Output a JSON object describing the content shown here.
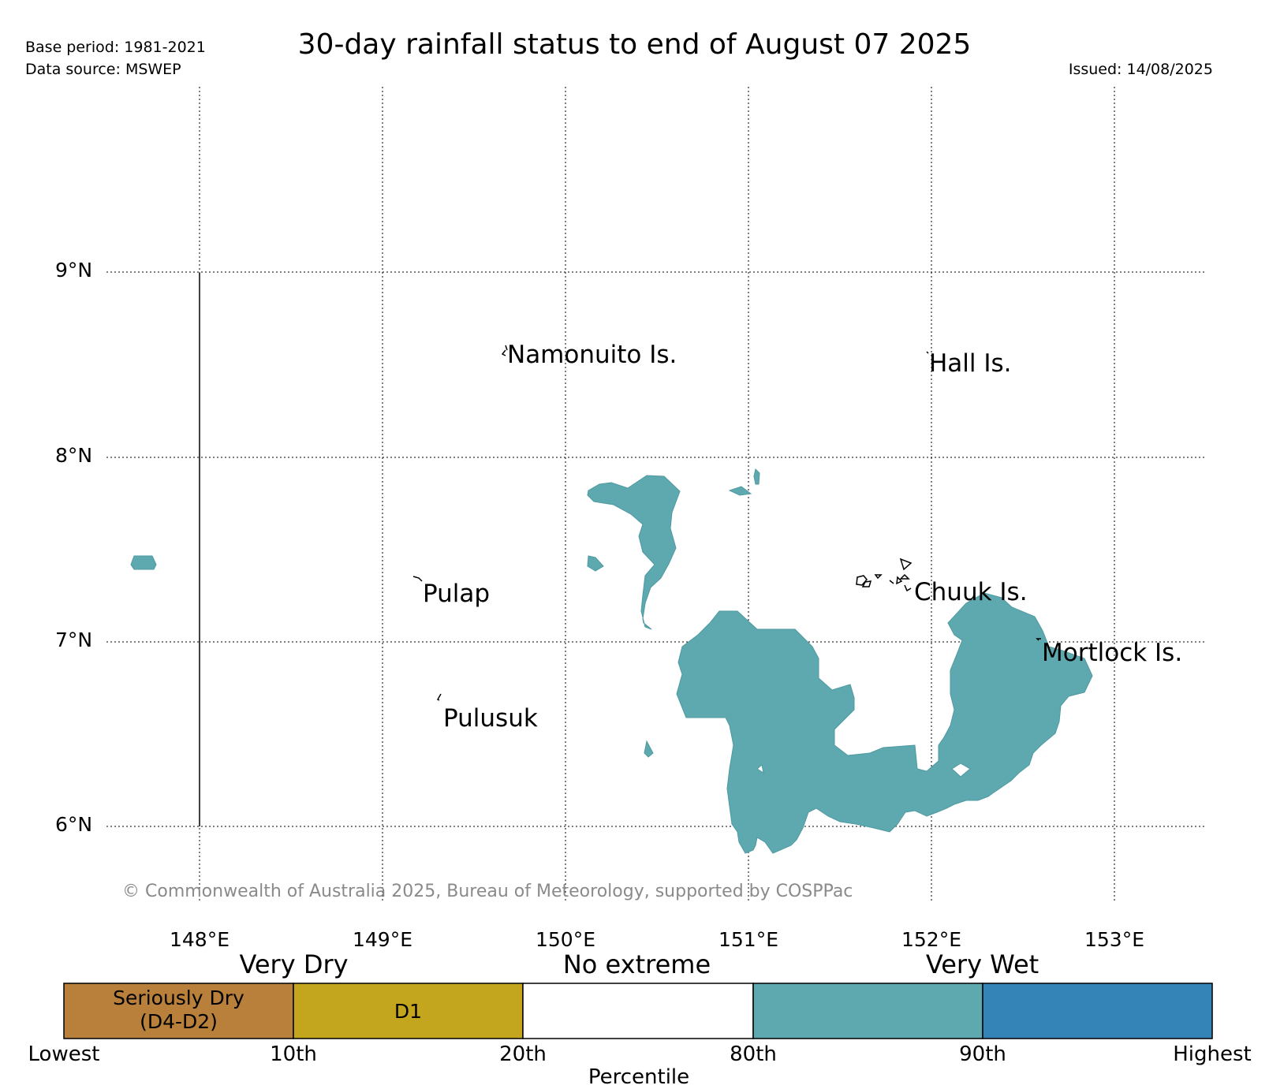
{
  "header": {
    "title": "30-day rainfall status to end of August 07 2025",
    "base_period": "Base period: 1981-2021",
    "data_source": "Data source: MSWEP",
    "issued": "Issued: 14/08/2025"
  },
  "map": {
    "lon_ticks": [
      "148°E",
      "149°E",
      "150°E",
      "151°E",
      "152°E",
      "153°E"
    ],
    "lat_ticks": [
      "9°N",
      "8°N",
      "7°N",
      "6°N"
    ],
    "places": [
      {
        "name": "Namonuito Is.",
        "lon": 149.7,
        "lat": 8.55
      },
      {
        "name": "Hall Is.",
        "lon": 151.98,
        "lat": 8.5
      },
      {
        "name": "Pulap",
        "lon": 149.21,
        "lat": 7.28
      },
      {
        "name": "Chuuk Is.",
        "lon": 151.78,
        "lat": 7.3
      },
      {
        "name": "Mortlock Is.",
        "lon": 152.6,
        "lat": 6.95
      },
      {
        "name": "Pulusuk",
        "lon": 149.32,
        "lat": 6.65
      }
    ],
    "very_wet_color": "#5ea9b0",
    "copyright": "© Commonwealth of Australia 2025, Bureau of Meteorology, supported by COSPPac"
  },
  "legend": {
    "categories": [
      "Very Dry",
      "No extreme",
      "Very Wet"
    ],
    "segments": [
      {
        "label_line1": "Seriously Dry",
        "label_line2": "(D4-D2)",
        "color": "#b8803a"
      },
      {
        "label_line1": "D1",
        "label_line2": "",
        "color": "#c4a51e"
      },
      {
        "label_line1": "",
        "label_line2": "",
        "color": "#ffffff"
      },
      {
        "label_line1": "",
        "label_line2": "",
        "color": "#5ea9b0"
      },
      {
        "label_line1": "",
        "label_line2": "",
        "color": "#3584b8"
      }
    ],
    "percentiles": [
      "Lowest",
      "10th",
      "20th",
      "80th",
      "90th",
      "Highest"
    ],
    "axis_label": "Percentile"
  }
}
